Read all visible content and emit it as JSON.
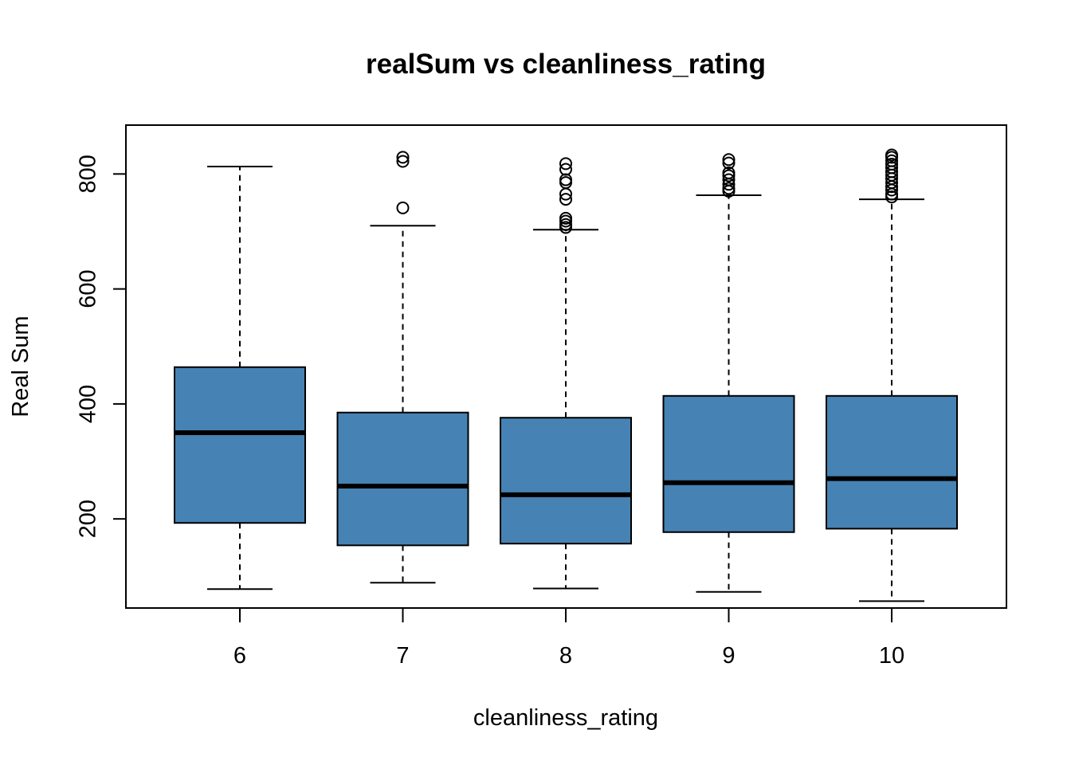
{
  "chart_data": {
    "type": "boxplot",
    "title": "realSum vs cleanliness_rating",
    "xlabel": "cleanliness_rating",
    "ylabel": "Real Sum",
    "categories": [
      "6",
      "7",
      "8",
      "9",
      "10"
    ],
    "y_ticks": [
      200,
      400,
      600,
      800
    ],
    "ylim": [
      45,
      885
    ],
    "grid": false,
    "legend": "none",
    "box_color": "#4682B4",
    "line_color": "#000000",
    "boxes": [
      {
        "category": "6",
        "whisker_low": 78,
        "q1": 193,
        "median": 350,
        "q3": 464,
        "whisker_high": 813,
        "outliers": []
      },
      {
        "category": "7",
        "whisker_low": 89,
        "q1": 154,
        "median": 257,
        "q3": 385,
        "whisker_high": 710,
        "outliers": [
          741,
          822,
          829
        ]
      },
      {
        "category": "8",
        "whisker_low": 79,
        "q1": 157,
        "median": 242,
        "q3": 376,
        "whisker_high": 703,
        "outliers": [
          707,
          712,
          718,
          723,
          756,
          765,
          785,
          790,
          808,
          818
        ]
      },
      {
        "category": "9",
        "whisker_low": 73,
        "q1": 177,
        "median": 263,
        "q3": 414,
        "whisker_high": 763,
        "outliers": [
          770,
          775,
          782,
          790,
          797,
          802,
          819,
          825
        ]
      },
      {
        "category": "10",
        "whisker_low": 57,
        "q1": 183,
        "median": 270,
        "q3": 414,
        "whisker_high": 756,
        "outliers": [
          760,
          765,
          772,
          778,
          785,
          792,
          798,
          804,
          811,
          817,
          823,
          829,
          833
        ]
      }
    ]
  }
}
